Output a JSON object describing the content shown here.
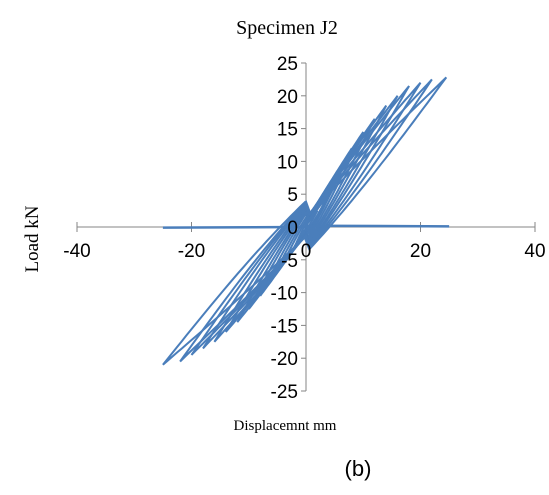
{
  "chart_data": {
    "type": "line",
    "title": "Specimen J2",
    "xlabel": "Displacemnt mm",
    "ylabel": "Load kN",
    "caption": "(b)",
    "xlim": [
      -40,
      40
    ],
    "ylim": [
      -25,
      25
    ],
    "x_ticks": [
      -40,
      -20,
      0,
      20,
      40
    ],
    "x_tick_labels": [
      "-40",
      "-20",
      "0",
      "20",
      "40"
    ],
    "y_ticks": [
      -25,
      -20,
      -15,
      -10,
      -5,
      0,
      5,
      10,
      15,
      20,
      25
    ],
    "y_tick_labels": [
      "-25",
      "-20",
      "-15",
      "-10",
      "-5",
      "0",
      "5",
      "10",
      "15",
      "20",
      "25"
    ],
    "grid": false,
    "legend": "none",
    "series_color": "#4a7ebb",
    "series": [
      {
        "values_description": "hysteresis loops (load vs displacement)",
        "loops": [
          {
            "xmax": 2,
            "ymax": 2.5,
            "xmin": -2,
            "ymin": -3
          },
          {
            "xmax": 4,
            "ymax": 5,
            "xmin": -4,
            "ymin": -5.5
          },
          {
            "xmax": 6,
            "ymax": 8,
            "xmin": -6,
            "ymin": -8
          },
          {
            "xmax": 8,
            "ymax": 12,
            "xmin": -8,
            "ymin": -10.5
          },
          {
            "xmax": 10,
            "ymax": 14.5,
            "xmin": -10,
            "ymin": -12.5
          },
          {
            "xmax": 12,
            "ymax": 16.5,
            "xmin": -12,
            "ymin": -14.5
          },
          {
            "xmax": 14,
            "ymax": 18.5,
            "xmin": -14,
            "ymin": -16
          },
          {
            "xmax": 16,
            "ymax": 20,
            "xmin": -16,
            "ymin": -17.5
          },
          {
            "xmax": 18,
            "ymax": 21.5,
            "xmin": -18,
            "ymin": -18.5
          },
          {
            "xmax": 20,
            "ymax": 22,
            "xmin": -20,
            "ymin": -19.5
          },
          {
            "xmax": 22,
            "ymax": 22.5,
            "xmin": -22,
            "ymin": -20.5
          },
          {
            "xmax": 24.5,
            "ymax": 22.8,
            "xmin": -25,
            "ymin": -21
          }
        ],
        "tail_segments": [
          {
            "x": [
              -25,
              0
            ],
            "y": [
              -0.1,
              0
            ]
          },
          {
            "x": [
              0,
              25
            ],
            "y": [
              0.2,
              0.1
            ]
          }
        ]
      }
    ]
  }
}
